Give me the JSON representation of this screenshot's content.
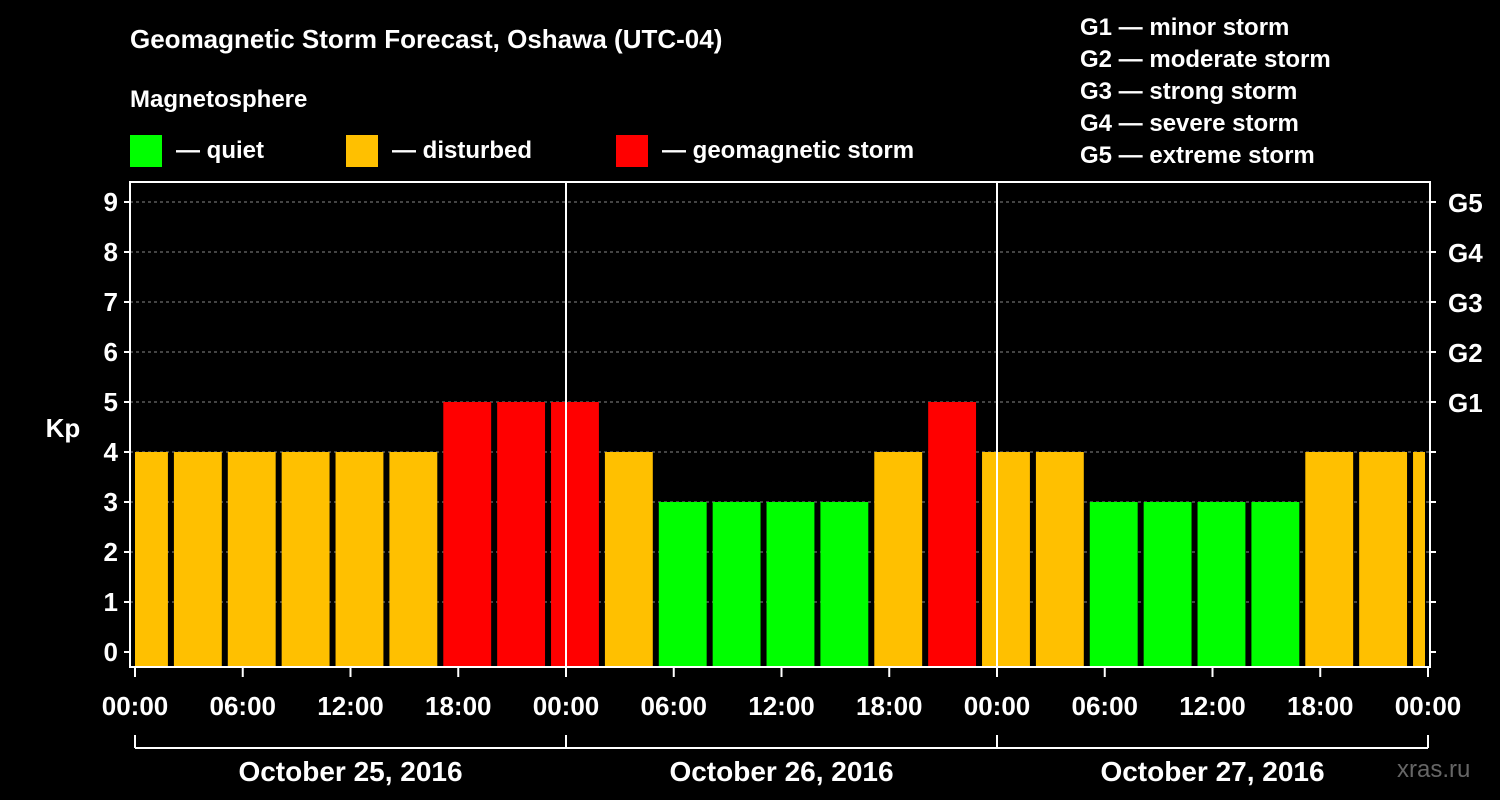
{
  "header": {
    "title": "Geomagnetic Storm Forecast, Oshawa (UTC-04)",
    "subtitle": "Magnetosphere"
  },
  "legend": [
    {
      "label": "— quiet",
      "color": "#00ff00"
    },
    {
      "label": "— disturbed",
      "color": "#ffc000"
    },
    {
      "label": "— geomagnetic storm",
      "color": "#ff0000"
    }
  ],
  "storm_scale": [
    "G1 — minor storm",
    "G2 — moderate storm",
    "G3 — strong storm",
    "G4 — severe storm",
    "G5 — extreme storm"
  ],
  "watermark": "xras.ru",
  "colors": {
    "quiet": "#00ff00",
    "disturbed": "#ffc000",
    "storm": "#ff0000",
    "grid": "#888888",
    "axis": "#ffffff"
  },
  "chart_data": {
    "type": "bar",
    "title": "Geomagnetic Storm Forecast, Oshawa (UTC-04)",
    "ylabel": "Kp",
    "ylim": [
      0,
      9
    ],
    "yticks": [
      "0",
      "1",
      "2",
      "3",
      "4",
      "5",
      "6",
      "7",
      "8",
      "9"
    ],
    "right_ticks": [
      {
        "kp": 5,
        "label": "G1"
      },
      {
        "kp": 6,
        "label": "G2"
      },
      {
        "kp": 7,
        "label": "G3"
      },
      {
        "kp": 8,
        "label": "G4"
      },
      {
        "kp": 9,
        "label": "G5"
      }
    ],
    "xlim_hours": [
      0,
      72
    ],
    "interval_hours": 3,
    "bar_start_hours": [
      0,
      2,
      5,
      8,
      11,
      14,
      17,
      20,
      23,
      26,
      29,
      32,
      35,
      38,
      41,
      44,
      47,
      50,
      53,
      56,
      59,
      62,
      65,
      68,
      71
    ],
    "bar_end_hours": [
      2,
      5,
      8,
      11,
      14,
      17,
      20,
      23,
      26,
      29,
      32,
      35,
      38,
      41,
      44,
      47,
      50,
      53,
      56,
      59,
      62,
      65,
      68,
      71,
      72
    ],
    "values": [
      4,
      4,
      4,
      4,
      4,
      4,
      5,
      5,
      5,
      4,
      3,
      3,
      3,
      3,
      4,
      5,
      4,
      4,
      3,
      3,
      3,
      3,
      4,
      4,
      4
    ],
    "status": [
      "disturbed",
      "disturbed",
      "disturbed",
      "disturbed",
      "disturbed",
      "disturbed",
      "storm",
      "storm",
      "storm",
      "disturbed",
      "quiet",
      "quiet",
      "quiet",
      "quiet",
      "disturbed",
      "storm",
      "disturbed",
      "disturbed",
      "quiet",
      "quiet",
      "quiet",
      "quiet",
      "disturbed",
      "disturbed",
      "disturbed"
    ],
    "x_tick_hours": [
      0,
      6,
      12,
      18,
      24,
      30,
      36,
      42,
      48,
      54,
      60,
      66,
      72
    ],
    "x_tick_labels": [
      "00:00",
      "06:00",
      "12:00",
      "18:00",
      "00:00",
      "06:00",
      "12:00",
      "18:00",
      "00:00",
      "06:00",
      "12:00",
      "18:00",
      "00:00"
    ],
    "day_boundary_hours": [
      24,
      48
    ],
    "days": [
      {
        "label": "October 25, 2016",
        "start_hour": 0,
        "end_hour": 24
      },
      {
        "label": "October 26, 2016",
        "start_hour": 24,
        "end_hour": 48
      },
      {
        "label": "October 27, 2016",
        "start_hour": 48,
        "end_hour": 72
      }
    ]
  }
}
